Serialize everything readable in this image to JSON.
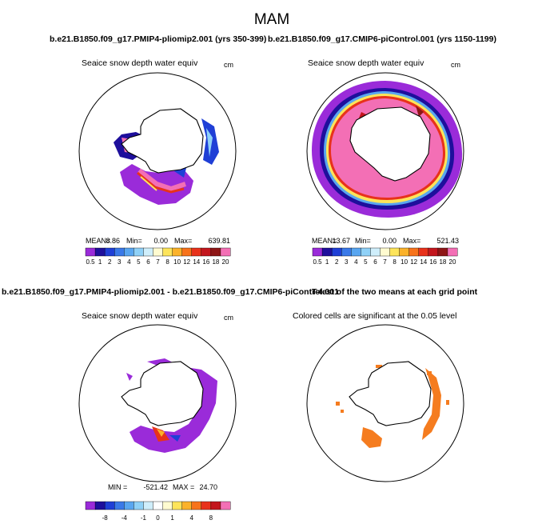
{
  "figure": {
    "title": "MAM",
    "colors": {
      "background": "#ffffff",
      "coast": "#000000",
      "circle": "#000000"
    }
  },
  "chart_data": [
    {
      "type": "heatmap",
      "projection": "south-polar-stereographic",
      "header": "b.e21.B1850.f09_g17.PMIP4-pliomip2.001 (yrs 350-399)",
      "title": "Seaice snow depth water equiv",
      "units": "cm",
      "stats": {
        "mean_label": "MEAN=",
        "mean": "8.86",
        "min_label": "Min=",
        "min": "0.00",
        "max_label": "Max=",
        "max": "639.81"
      },
      "colorbar": {
        "labels": [
          "0.5",
          "1",
          "2",
          "3",
          "4",
          "5",
          "6",
          "7",
          "8",
          "10",
          "12",
          "14",
          "16",
          "18",
          "20"
        ],
        "colors": [
          "#9a2bd9",
          "#1e0f9c",
          "#1f3fd6",
          "#3a79e8",
          "#59a6f0",
          "#8fd1f7",
          "#cfeefb",
          "#fffbd0",
          "#fde45a",
          "#fbb22a",
          "#f7731b",
          "#e8321b",
          "#c3161d",
          "#8e1616",
          "#f36fb5"
        ]
      },
      "regions": "sea ice snow cover around Antarctic coast; highest values in Weddell Sea and Ross Sea sectors"
    },
    {
      "type": "heatmap",
      "projection": "south-polar-stereographic",
      "header": "b.e21.B1850.f09_g17.CMIP6-piControl.001 (yrs 1150-1199)",
      "title": "Seaice snow depth water equiv",
      "units": "cm",
      "stats": {
        "mean_label": "MEAN=",
        "mean": "13.67",
        "min_label": "Min=",
        "min": "0.00",
        "max_label": "Max=",
        "max": "521.43"
      },
      "colorbar": {
        "labels": [
          "0.5",
          "1",
          "2",
          "3",
          "4",
          "5",
          "6",
          "7",
          "8",
          "10",
          "12",
          "14",
          "16",
          "18",
          "20"
        ],
        "colors": [
          "#9a2bd9",
          "#1e0f9c",
          "#1f3fd6",
          "#3a79e8",
          "#59a6f0",
          "#8fd1f7",
          "#cfeefb",
          "#fffbd0",
          "#fde45a",
          "#fbb22a",
          "#f7731b",
          "#e8321b",
          "#c3161d",
          "#8e1616",
          "#f36fb5"
        ]
      },
      "regions": "continuous ring of sea ice snow around Antarctica, mostly >= 20 cm (pink)"
    },
    {
      "type": "heatmap",
      "projection": "south-polar-stereographic",
      "header": "b.e21.B1850.f09_g17.PMIP4-pliomip2.001 - b.e21.B1850.f09_g17.CMIP6-piControl.001",
      "title": "Seaice snow depth water equiv",
      "units": "cm",
      "stats": {
        "min_label": "MIN =",
        "min": "-521.42",
        "max_label": "MAX =",
        "max": "24.70"
      },
      "colorbar": {
        "labels": [
          "-8",
          "-4",
          "-1",
          "0",
          "1",
          "4",
          "8"
        ],
        "colors": [
          "#9a2bd9",
          "#1e0f9c",
          "#1f3fd6",
          "#3a79e8",
          "#59a6f0",
          "#8fd1f7",
          "#cfeefb",
          "#ffffff",
          "#fffbd0",
          "#fde45a",
          "#fbb22a",
          "#f7731b",
          "#e8321b",
          "#c3161d",
          "#f36fb5"
        ]
      },
      "regions": "negative differences (purple) in outer sea ice ring; positive values near Antarctic Peninsula"
    },
    {
      "type": "heatmap",
      "projection": "south-polar-stereographic",
      "header": "T-test of the two means at each grid point",
      "title": "Colored cells are significant at the 0.05 level",
      "significance_color": "#f57c1f",
      "regions": "significant cells in Weddell Sea, Bellingshausen Sea and East Antarctic sectors"
    }
  ]
}
